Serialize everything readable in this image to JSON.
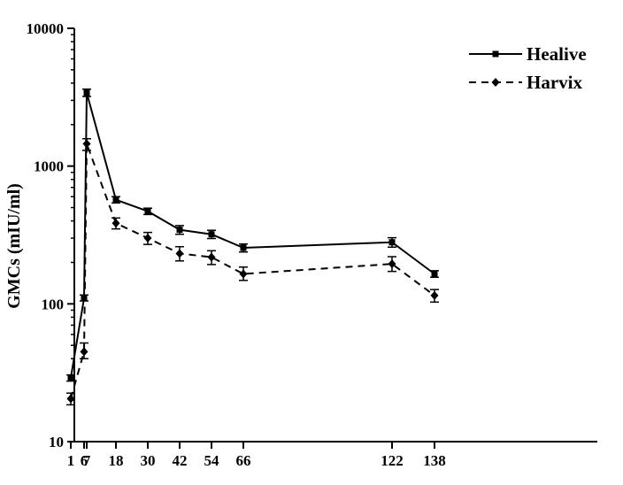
{
  "chart_data": {
    "type": "line",
    "title": "",
    "xlabel": "",
    "ylabel": "GMCs (mIU/ml)",
    "yscale": "log",
    "ylim": [
      10,
      10000
    ],
    "y_ticks": [
      "10",
      "100",
      "1000",
      "10000"
    ],
    "x_ticks": [
      "1",
      "6",
      "7",
      "18",
      "30",
      "42",
      "54",
      "66",
      "122",
      "138"
    ],
    "x_tick_values": [
      1,
      6,
      7,
      18,
      30,
      42,
      54,
      66,
      122,
      138
    ],
    "grid": false,
    "legend_position": "top-right",
    "series": [
      {
        "name": "Healive",
        "line_style": "solid",
        "marker": "square",
        "x": [
          1,
          6,
          7,
          18,
          30,
          42,
          54,
          66,
          122,
          138
        ],
        "y": [
          29,
          110,
          3400,
          570,
          470,
          345,
          320,
          255,
          280,
          165
        ],
        "err_low": [
          27.5,
          105,
          3200,
          540,
          445,
          320,
          298,
          238,
          258,
          156
        ],
        "err_high": [
          30.5,
          116,
          3620,
          600,
          495,
          370,
          342,
          272,
          302,
          174
        ]
      },
      {
        "name": "Harvix",
        "line_style": "dashed",
        "marker": "diamond",
        "x": [
          1,
          6,
          7,
          18,
          30,
          42,
          54,
          66,
          122,
          138
        ],
        "y": [
          20.5,
          45,
          1450,
          385,
          300,
          232,
          218,
          165,
          195,
          115
        ],
        "err_low": [
          18.5,
          40,
          1300,
          350,
          270,
          205,
          193,
          148,
          172,
          103
        ],
        "err_high": [
          22.5,
          52,
          1580,
          420,
          330,
          260,
          243,
          185,
          220,
          127
        ]
      }
    ]
  }
}
